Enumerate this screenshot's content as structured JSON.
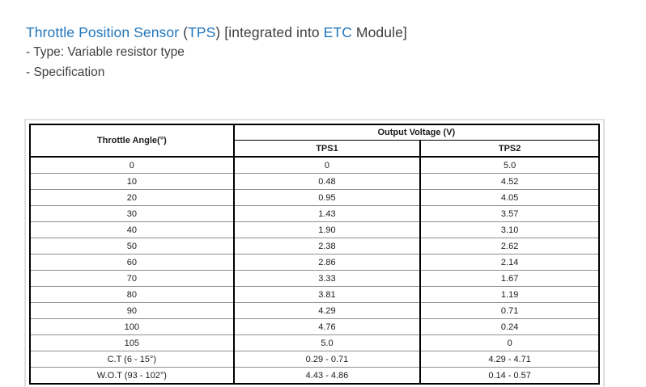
{
  "title": {
    "sensor_link": "Throttle Position Sensor",
    "sep1": " (",
    "tps_link": "TPS",
    "sep2": ") [integrated into ",
    "etc_link": "ETC",
    "sep3": " Module]"
  },
  "lines": {
    "type_line": "- Type: Variable resistor type",
    "spec_line": "- Specification"
  },
  "table": {
    "headers": {
      "angle": "Throttle Angle(°)",
      "output_voltage": "Output Voltage (V)",
      "tps1": "TPS1",
      "tps2": "TPS2"
    },
    "rows": [
      [
        "0",
        "0",
        "5.0"
      ],
      [
        "10",
        "0.48",
        "4.52"
      ],
      [
        "20",
        "0.95",
        "4.05"
      ],
      [
        "30",
        "1.43",
        "3.57"
      ],
      [
        "40",
        "1.90",
        "3.10"
      ],
      [
        "50",
        "2.38",
        "2.62"
      ],
      [
        "60",
        "2.86",
        "2.14"
      ],
      [
        "70",
        "3.33",
        "1.67"
      ],
      [
        "80",
        "3.81",
        "1.19"
      ],
      [
        "90",
        "4.29",
        "0.71"
      ],
      [
        "100",
        "4.76",
        "0.24"
      ],
      [
        "105",
        "5.0",
        "0"
      ],
      [
        "C.T (6 - 15°)",
        "0.29 - 0.71",
        "4.29 - 4.71"
      ],
      [
        "W.O.T (93 - 102°)",
        "4.43 - 4.86",
        "0.14 - 0.57"
      ]
    ]
  },
  "colors": {
    "link_blue": "#2277bd",
    "text_dark": "#3f3f3f",
    "table_text": "#1c1c1c",
    "table_border": "#000000",
    "row_line": "#8f8f8f",
    "frame_border": "#e0e0e0"
  }
}
